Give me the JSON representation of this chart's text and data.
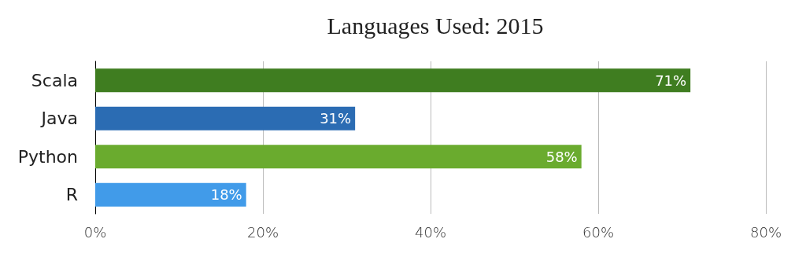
{
  "chart_data": {
    "type": "bar",
    "orientation": "horizontal",
    "title": "Languages Used: 2015",
    "categories": [
      "Scala",
      "Java",
      "Python",
      "R"
    ],
    "values": [
      71,
      31,
      58,
      18
    ],
    "colors": [
      "#3f7d20",
      "#2b6cb3",
      "#6aab2e",
      "#419be9"
    ],
    "value_labels": [
      "71%",
      "31%",
      "58%",
      "18%"
    ],
    "xlim": [
      0,
      80
    ],
    "xticks": [
      {
        "value": 0,
        "label": "0%"
      },
      {
        "value": 20,
        "label": "20%"
      },
      {
        "value": 40,
        "label": "40%"
      },
      {
        "value": 60,
        "label": "60%"
      },
      {
        "value": 80,
        "label": "80%"
      }
    ],
    "grid": "x"
  }
}
